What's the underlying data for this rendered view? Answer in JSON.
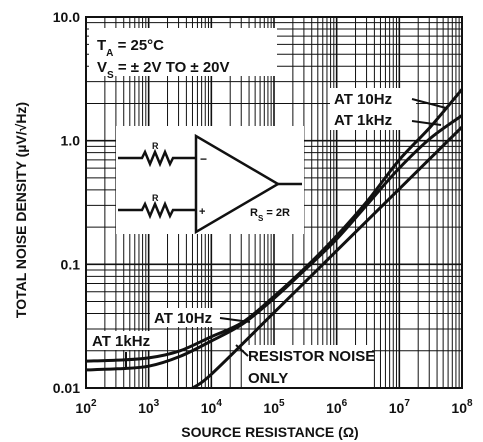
{
  "chart_data": {
    "type": "line",
    "xlabel": "SOURCE RESISTANCE (Ω)",
    "ylabel": "TOTAL NOISE DENSITY (µV/√Hz)",
    "x_scale": "log",
    "y_scale": "log",
    "xlim": [
      100,
      100000000
    ],
    "ylim": [
      0.01,
      10
    ],
    "grid": true,
    "x_ticks": [
      {
        "base": "10",
        "exp": "2"
      },
      {
        "base": "10",
        "exp": "3"
      },
      {
        "base": "10",
        "exp": "4"
      },
      {
        "base": "10",
        "exp": "5"
      },
      {
        "base": "10",
        "exp": "6"
      },
      {
        "base": "10",
        "exp": "7"
      },
      {
        "base": "10",
        "exp": "8"
      }
    ],
    "y_ticks": [
      "0.01",
      "0.1",
      "1.0",
      "10.0"
    ],
    "conditions": {
      "ta": {
        "pre": "T",
        "sub": "A",
        "post": " = 25°C"
      },
      "vs": {
        "pre": "V",
        "sub": "S",
        "post": " = ± 2V TO ± 20V"
      }
    },
    "series": [
      {
        "name": "AT 10Hz",
        "x": [
          100,
          316,
          1000,
          3162,
          10000,
          31623,
          100000,
          316228,
          1000000,
          3162278,
          10000000,
          31622777,
          100000000
        ],
        "y": [
          0.0165,
          0.0168,
          0.0175,
          0.02,
          0.026,
          0.034,
          0.055,
          0.094,
          0.17,
          0.33,
          0.7,
          1.3,
          2.6
        ]
      },
      {
        "name": "AT 1kHz",
        "x": [
          100,
          316,
          1000,
          3162,
          10000,
          31623,
          100000,
          316228,
          1000000,
          3162278,
          10000000,
          31622777,
          100000000
        ],
        "y": [
          0.014,
          0.0143,
          0.015,
          0.018,
          0.024,
          0.033,
          0.053,
          0.091,
          0.16,
          0.31,
          0.6,
          1.05,
          1.6
        ]
      },
      {
        "name": "RESISTOR NOISE ONLY",
        "x": [
          5000,
          10000,
          100000,
          1000000,
          10000000,
          100000000
        ],
        "y": [
          0.0091,
          0.0129,
          0.0407,
          0.129,
          0.407,
          1.29
        ]
      }
    ],
    "annotations": {
      "at10_top": "AT 10Hz",
      "at1k_top": "AT 1kHz",
      "at10_bot": "AT 10Hz",
      "at1k_bot": "AT 1kHz",
      "resistor_line1": "RESISTOR NOISE",
      "resistor_line2": "ONLY"
    },
    "inset": {
      "r1": "R",
      "r2": "R",
      "minus": "−",
      "plus": "+",
      "rs_pre": "R",
      "rs_sub": "S",
      "rs_post": " = 2R"
    }
  },
  "colors": {
    "ink": "#111111",
    "background": "#ffffff"
  }
}
